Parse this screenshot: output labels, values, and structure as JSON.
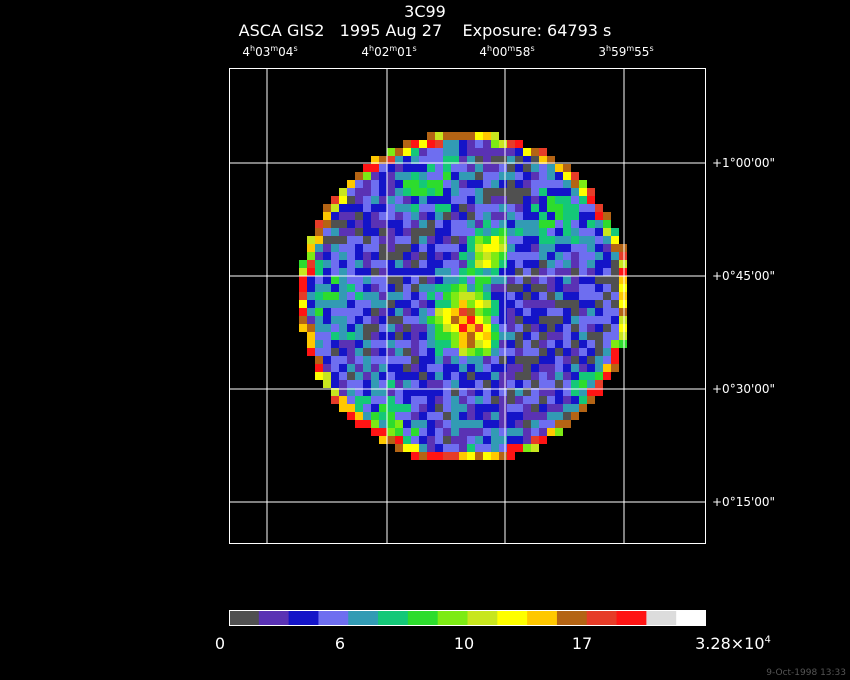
{
  "header": {
    "object": "3C99",
    "info": "ASCA GIS2   1995 Aug 27    Exposure: 64793 s"
  },
  "ra_labels": [
    {
      "h": "4",
      "m": "03",
      "s": "04"
    },
    {
      "h": "4",
      "m": "02",
      "s": "01"
    },
    {
      "h": "4",
      "m": "00",
      "s": "58"
    },
    {
      "h": "3",
      "m": "59",
      "s": "55"
    }
  ],
  "unit_glyphs": {
    "h": "h",
    "m": "m",
    "s": "s"
  },
  "dec_labels": [
    "+1°00'00\"",
    "+0°45'00\"",
    "+0°30'00\"",
    "+0°15'00\""
  ],
  "colorbar": {
    "colors": [
      "#505050",
      "#5a32b4",
      "#1414c8",
      "#6e6ef0",
      "#329bb4",
      "#14c878",
      "#2ddc2d",
      "#7deb14",
      "#c8e61e",
      "#ffff00",
      "#ffc800",
      "#b46414",
      "#e63c28",
      "#ff1414",
      "#dcdcdc",
      "#ffffff"
    ],
    "labels": [
      "0",
      "6",
      "10",
      "17"
    ],
    "max_mantissa": "3.28×10",
    "max_exponent": "4"
  },
  "timestamp": "9-Oct-1998 13:33"
}
